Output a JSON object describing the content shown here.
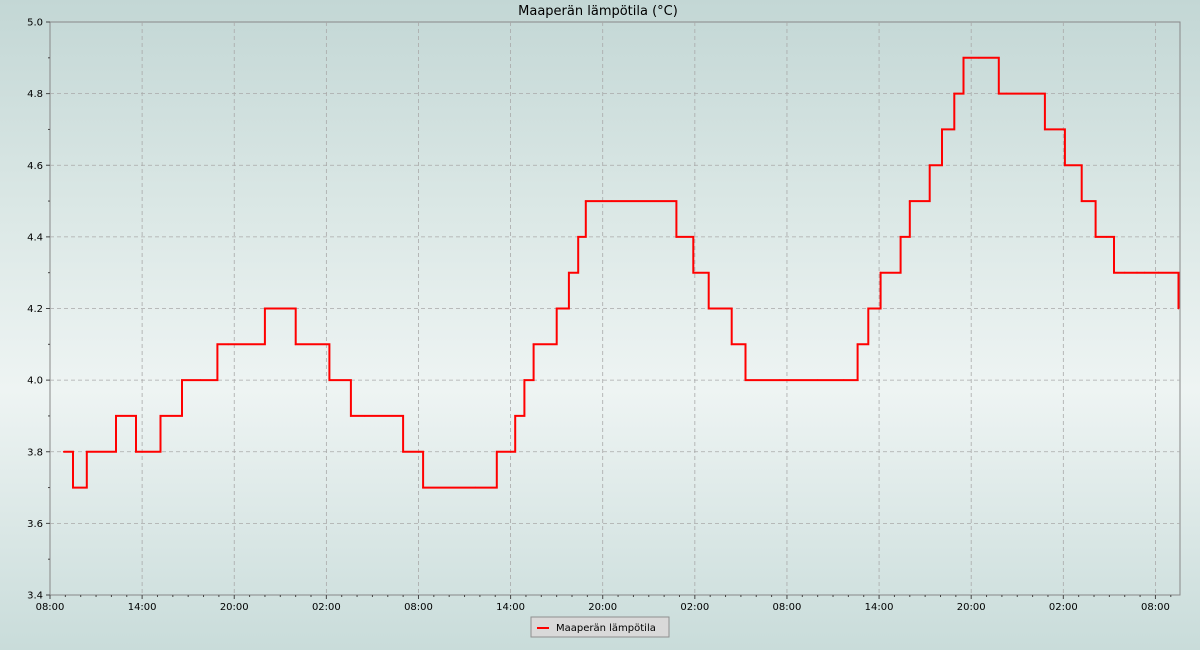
{
  "chart_data": {
    "type": "line",
    "title": "Maaperän lämpötila (°C)",
    "ylim": [
      3.4,
      5.0
    ],
    "xlim": [
      0,
      73.6
    ],
    "yticks": [
      3.4,
      3.6,
      3.8,
      4.0,
      4.2,
      4.4,
      4.6,
      4.8,
      5.0
    ],
    "ytick_labels": [
      "3.4",
      "3.6",
      "3.8",
      "4.0",
      "4.2",
      "4.4",
      "4.6",
      "4.8",
      "5.0"
    ],
    "xticks": [
      0,
      6,
      12,
      18,
      24,
      30,
      36,
      42,
      48,
      54,
      60,
      66,
      72
    ],
    "xtick_labels": [
      "08:00",
      "14:00",
      "20:00",
      "02:00",
      "08:00",
      "14:00",
      "20:00",
      "02:00",
      "08:00",
      "14:00",
      "20:00",
      "02:00",
      "08:00"
    ],
    "grid": true,
    "legend_position": "bottom-center",
    "series": [
      {
        "name": "Maaperän lämpötila",
        "color": "#ff0000",
        "x": [
          0.9,
          1.5,
          2.4,
          4.3,
          5.6,
          7.2,
          8.6,
          9.8,
          10.9,
          11.6,
          14.0,
          15.0,
          16.0,
          18.2,
          19.6,
          20.5,
          23.0,
          24.3,
          27.7,
          29.1,
          30.3,
          30.9,
          31.5,
          33.0,
          33.8,
          34.4,
          34.9,
          36.6,
          40.8,
          41.9,
          42.9,
          44.4,
          45.3,
          47.5,
          50.0,
          51.7,
          52.6,
          53.3,
          54.1,
          55.4,
          56.0,
          57.3,
          58.1,
          58.9,
          59.5,
          60.5,
          61.8,
          62.3,
          63.3,
          64.8,
          66.1,
          67.2,
          68.1,
          68.8,
          69.3,
          70.0,
          70.8,
          71.3,
          72.2,
          73.5
        ],
        "y": [
          3.8,
          3.7,
          3.8,
          3.9,
          3.8,
          3.9,
          4.0,
          4.0,
          4.1,
          4.1,
          4.2,
          4.2,
          4.1,
          4.0,
          3.9,
          3.9,
          3.8,
          3.7,
          3.7,
          3.8,
          3.9,
          4.0,
          4.1,
          4.2,
          4.3,
          4.4,
          4.5,
          4.5,
          4.4,
          4.3,
          4.2,
          4.1,
          4.0,
          4.0,
          4.0,
          4.0,
          4.1,
          4.2,
          4.3,
          4.4,
          4.5,
          4.6,
          4.7,
          4.8,
          4.9,
          4.9,
          4.8,
          4.8,
          4.8,
          4.7,
          4.6,
          4.5,
          4.4,
          4.4,
          4.3,
          4.3,
          4.3,
          4.3,
          4.3,
          4.2
        ]
      }
    ]
  }
}
